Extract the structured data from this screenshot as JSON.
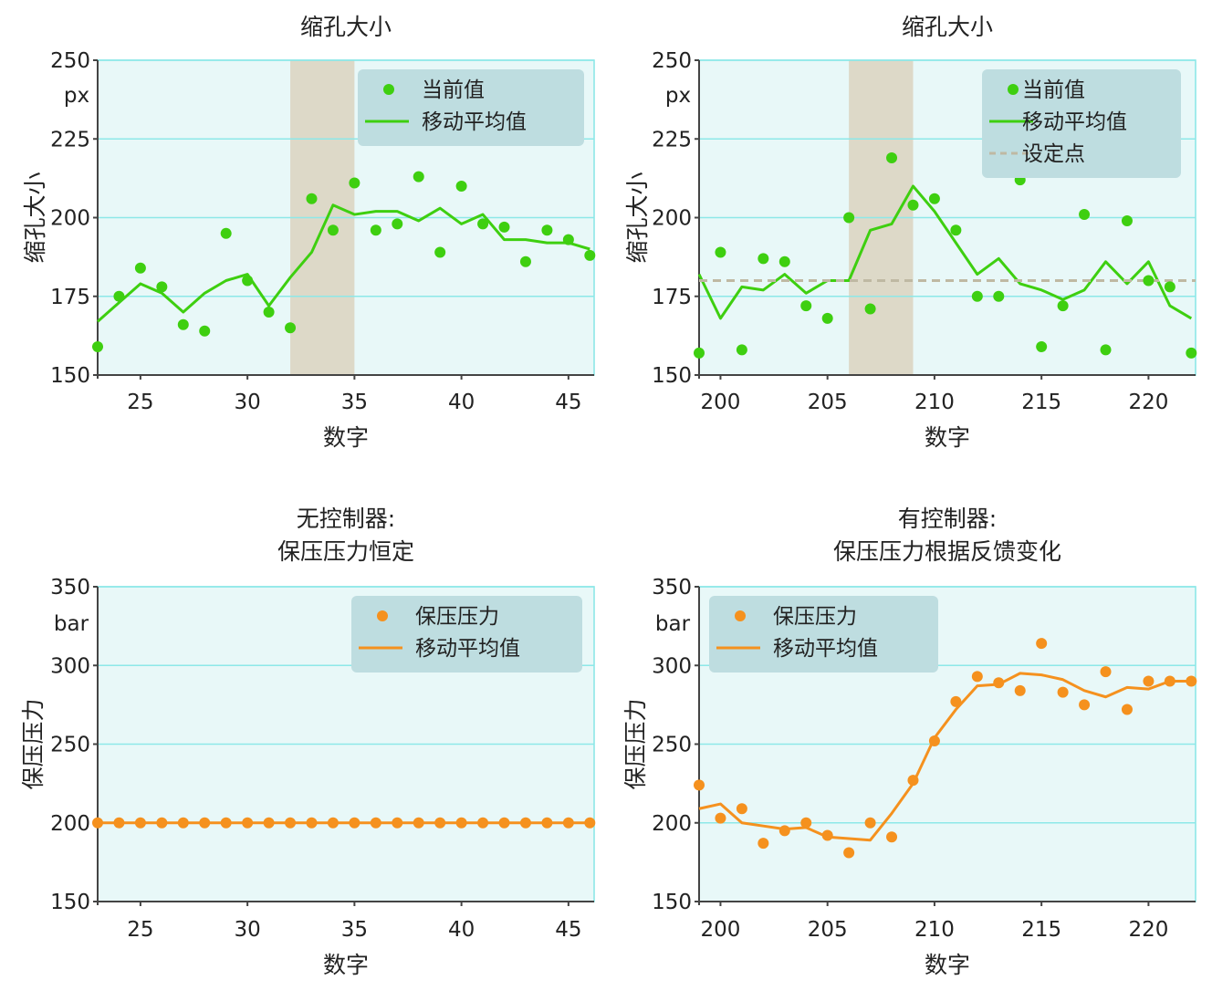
{
  "figure_colors": {
    "plot_bg": "#e8f8f8",
    "grid": "#8de8e8",
    "frame": "#8de8e8",
    "shade": "#ddd9c8",
    "legend_bg": "#bedde0",
    "green": "#3ecf10",
    "orange": "#f5911e",
    "setpoint": "#bfb9a3"
  },
  "chart_data": [
    {
      "type": "scatter",
      "title_lines": [
        "缩孔大小"
      ],
      "xlabel": "数字",
      "ylabel": "缩孔大小",
      "unit": "px",
      "xlim": [
        23,
        46.2
      ],
      "ylim": [
        150,
        250
      ],
      "xticks": [
        25,
        30,
        35,
        40,
        45
      ],
      "yticks": [
        150,
        175,
        200,
        225,
        250
      ],
      "grid": true,
      "legend_position": "top-right",
      "shaded_region": [
        32,
        35
      ],
      "x": [
        23,
        24,
        25,
        26,
        27,
        28,
        29,
        30,
        31,
        32,
        33,
        34,
        35,
        36,
        37,
        38,
        39,
        40,
        41,
        42,
        43,
        44,
        45,
        46
      ],
      "series": [
        {
          "name": "当前值",
          "kind": "points",
          "color": "#3ecf10",
          "values": [
            159,
            175,
            184,
            178,
            166,
            164,
            195,
            180,
            170,
            165,
            206,
            196,
            211,
            196,
            198,
            213,
            189,
            210,
            198,
            197,
            186,
            196,
            193,
            188
          ]
        },
        {
          "name": "移动平均值",
          "kind": "line",
          "color": "#3ecf10",
          "values": [
            167,
            173,
            179,
            176,
            170,
            176,
            180,
            182,
            172,
            181,
            189,
            204,
            201,
            202,
            202,
            199,
            203,
            198,
            201,
            193,
            193,
            192,
            192,
            190
          ]
        }
      ]
    },
    {
      "type": "scatter",
      "title_lines": [
        "缩孔大小"
      ],
      "xlabel": "数字",
      "ylabel": "缩孔大小",
      "unit": "px",
      "xlim": [
        199,
        222.2
      ],
      "ylim": [
        150,
        250
      ],
      "xticks": [
        200,
        205,
        210,
        215,
        220
      ],
      "yticks": [
        150,
        175,
        200,
        225,
        250
      ],
      "grid": true,
      "legend_position": "top-right",
      "shaded_region": [
        206,
        209
      ],
      "x": [
        199,
        200,
        201,
        202,
        203,
        204,
        205,
        206,
        207,
        208,
        209,
        210,
        211,
        212,
        213,
        214,
        215,
        216,
        217,
        218,
        219,
        220,
        221,
        222
      ],
      "series": [
        {
          "name": "当前值",
          "kind": "points",
          "color": "#3ecf10",
          "values": [
            157,
            189,
            158,
            187,
            186,
            172,
            168,
            200,
            171,
            219,
            204,
            206,
            196,
            175,
            175,
            212,
            159,
            172,
            201,
            158,
            199,
            180,
            178,
            157
          ]
        },
        {
          "name": "移动平均值",
          "kind": "line",
          "color": "#3ecf10",
          "values": [
            182,
            168,
            178,
            177,
            182,
            176,
            180,
            180,
            196,
            198,
            210,
            202,
            192,
            182,
            187,
            179,
            177,
            174,
            177,
            186,
            179,
            186,
            172,
            168
          ]
        },
        {
          "name": "设定点",
          "kind": "hline",
          "color": "#bfb9a3",
          "value": 180
        }
      ]
    },
    {
      "type": "scatter",
      "title_lines": [
        "无控制器:",
        "保压压力恒定"
      ],
      "xlabel": "数字",
      "ylabel": "保压压力",
      "unit": "bar",
      "xlim": [
        23,
        46.2
      ],
      "ylim": [
        150,
        350
      ],
      "xticks": [
        25,
        30,
        35,
        40,
        45
      ],
      "yticks": [
        150,
        200,
        250,
        300,
        350
      ],
      "grid": true,
      "legend_position": "top-right",
      "x": [
        23,
        24,
        25,
        26,
        27,
        28,
        29,
        30,
        31,
        32,
        33,
        34,
        35,
        36,
        37,
        38,
        39,
        40,
        41,
        42,
        43,
        44,
        45,
        46
      ],
      "series": [
        {
          "name": "保压压力",
          "kind": "points",
          "color": "#f5911e",
          "values": [
            200,
            200,
            200,
            200,
            200,
            200,
            200,
            200,
            200,
            200,
            200,
            200,
            200,
            200,
            200,
            200,
            200,
            200,
            200,
            200,
            200,
            200,
            200,
            200
          ]
        },
        {
          "name": "移动平均值",
          "kind": "line",
          "color": "#f5911e",
          "values": [
            200,
            200,
            200,
            200,
            200,
            200,
            200,
            200,
            200,
            200,
            200,
            200,
            200,
            200,
            200,
            200,
            200,
            200,
            200,
            200,
            200,
            200,
            200,
            200
          ]
        }
      ]
    },
    {
      "type": "scatter",
      "title_lines": [
        "有控制器:",
        "保压压力根据反馈变化"
      ],
      "xlabel": "数字",
      "ylabel": "保压压力",
      "unit": "bar",
      "xlim": [
        199,
        222.2
      ],
      "ylim": [
        150,
        350
      ],
      "xticks": [
        200,
        205,
        210,
        215,
        220
      ],
      "yticks": [
        150,
        200,
        250,
        300,
        350
      ],
      "grid": true,
      "legend_position": "top-left",
      "x": [
        199,
        200,
        201,
        202,
        203,
        204,
        205,
        206,
        207,
        208,
        209,
        210,
        211,
        212,
        213,
        214,
        215,
        216,
        217,
        218,
        219,
        220,
        221,
        222
      ],
      "series": [
        {
          "name": "保压压力",
          "kind": "points",
          "color": "#f5911e",
          "values": [
            224,
            203,
            209,
            187,
            195,
            200,
            192,
            181,
            200,
            191,
            227,
            252,
            277,
            293,
            289,
            284,
            314,
            283,
            275,
            296,
            272,
            290,
            290,
            290
          ]
        },
        {
          "name": "移动平均值",
          "kind": "line",
          "color": "#f5911e",
          "values": [
            209,
            212,
            200,
            198,
            196,
            197,
            191,
            190,
            189,
            206,
            225,
            254,
            272,
            287,
            288,
            295,
            294,
            291,
            284,
            280,
            286,
            285,
            290,
            290
          ]
        }
      ]
    }
  ]
}
